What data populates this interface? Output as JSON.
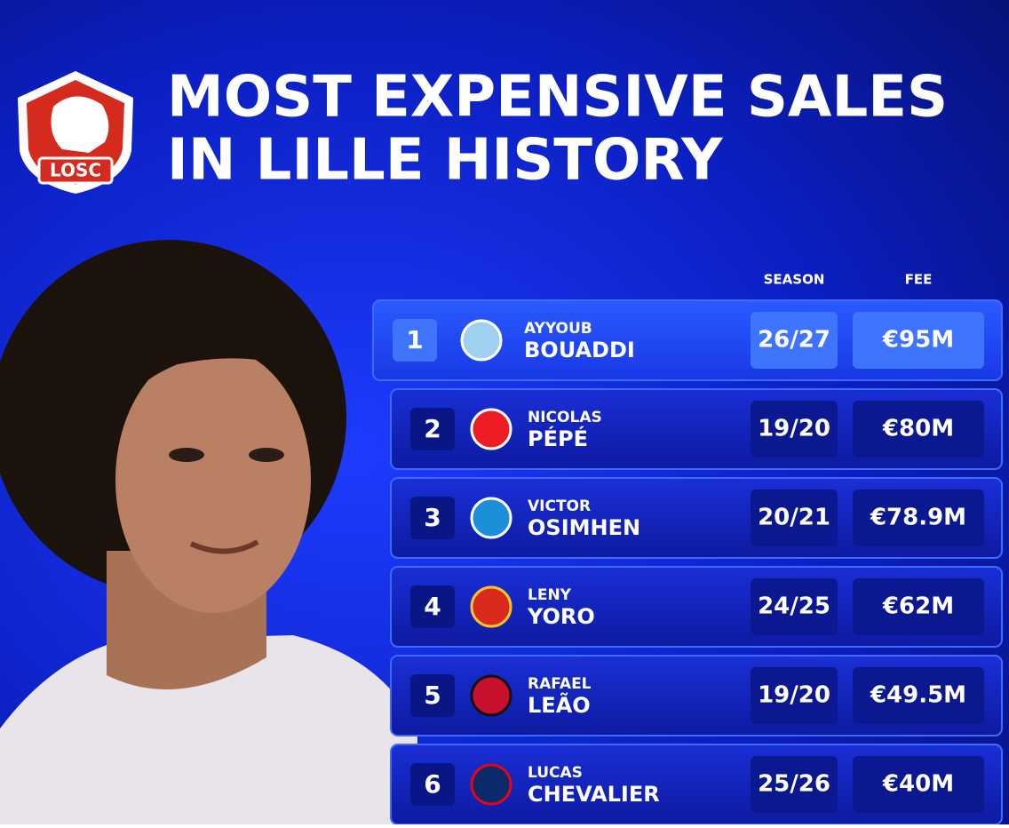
{
  "header": {
    "title_lines": [
      "MOST EXPENSIVE SALES",
      "IN LILLE HISTORY"
    ],
    "logo_text": "LOSC"
  },
  "table": {
    "columns": [
      "SEASON",
      "FEE"
    ],
    "rows": [
      {
        "rank": "1",
        "first_name": "AYYOUB",
        "last_name": "BOUADDI",
        "season": "26/27",
        "fee": "€95M"
      },
      {
        "rank": "2",
        "first_name": "NICOLAS",
        "last_name": "PÉPÉ",
        "season": "19/20",
        "fee": "€80M"
      },
      {
        "rank": "3",
        "first_name": "VICTOR",
        "last_name": "OSIMHEN",
        "season": "20/21",
        "fee": "€78.9M"
      },
      {
        "rank": "4",
        "first_name": "LENY",
        "last_name": "YORO",
        "season": "24/25",
        "fee": "€62M"
      },
      {
        "rank": "5",
        "first_name": "RAFAEL",
        "last_name": "LEÃO",
        "season": "19/20",
        "fee": "€49.5M"
      },
      {
        "rank": "6",
        "first_name": "LUCAS",
        "last_name": "CHEVALIER",
        "season": "25/26",
        "fee": "€40M"
      }
    ]
  }
}
